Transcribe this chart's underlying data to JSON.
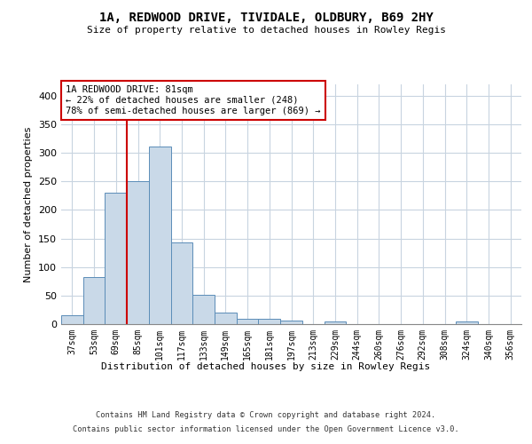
{
  "title": "1A, REDWOOD DRIVE, TIVIDALE, OLDBURY, B69 2HY",
  "subtitle": "Size of property relative to detached houses in Rowley Regis",
  "xlabel": "Distribution of detached houses by size in Rowley Regis",
  "ylabel": "Number of detached properties",
  "footer_line1": "Contains HM Land Registry data © Crown copyright and database right 2024.",
  "footer_line2": "Contains public sector information licensed under the Open Government Licence v3.0.",
  "bar_color": "#c9d9e8",
  "bar_edge_color": "#5b8db8",
  "grid_color": "#c8d4e0",
  "vline_color": "#cc0000",
  "annotation_box_color": "#cc0000",
  "annotation_text": "1A REDWOOD DRIVE: 81sqm\n← 22% of detached houses are smaller (248)\n78% of semi-detached houses are larger (869) →",
  "categories": [
    "37sqm",
    "53sqm",
    "69sqm",
    "85sqm",
    "101sqm",
    "117sqm",
    "133sqm",
    "149sqm",
    "165sqm",
    "181sqm",
    "197sqm",
    "213sqm",
    "229sqm",
    "244sqm",
    "260sqm",
    "276sqm",
    "292sqm",
    "308sqm",
    "324sqm",
    "340sqm",
    "356sqm"
  ],
  "values": [
    15,
    83,
    230,
    251,
    311,
    143,
    51,
    20,
    9,
    10,
    6,
    0,
    4,
    0,
    0,
    0,
    0,
    0,
    4,
    0,
    0
  ],
  "ylim": [
    0,
    420
  ],
  "vline_position": 2.5,
  "yticks": [
    0,
    50,
    100,
    150,
    200,
    250,
    300,
    350,
    400
  ]
}
